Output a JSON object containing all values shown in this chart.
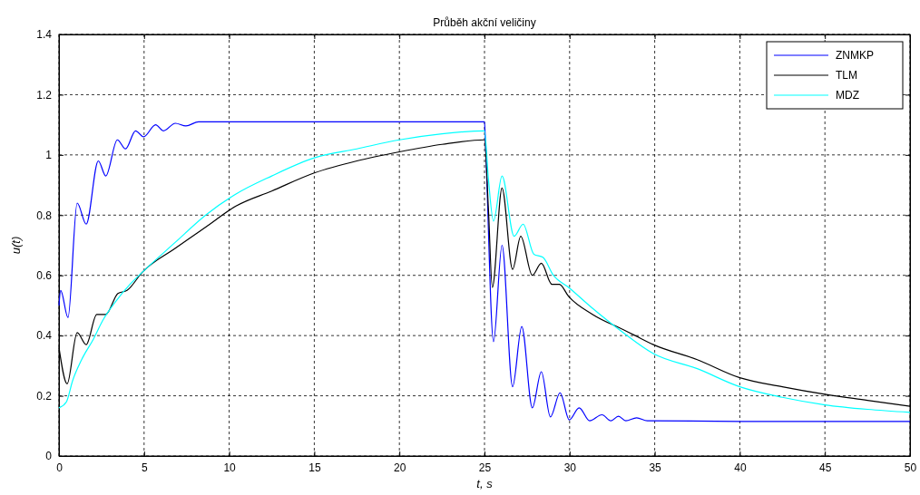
{
  "chart_data": {
    "type": "line",
    "title": "Průběh akční veličiny",
    "xlabel": "t, s",
    "ylabel": "u(t)",
    "xlim": [
      0,
      50
    ],
    "ylim": [
      0,
      1.4
    ],
    "xticks": [
      0,
      5,
      10,
      15,
      20,
      25,
      30,
      35,
      40,
      45,
      50
    ],
    "yticks": [
      0,
      0.2,
      0.4,
      0.6,
      0.8,
      1,
      1.2,
      1.4
    ],
    "grid": true,
    "legend": "top right",
    "line_style": "solid",
    "marker": "none",
    "series": [
      {
        "name": "ZNMKP",
        "color": "#0000ff",
        "x": [
          0,
          0.1,
          0.53,
          1.07,
          1.6,
          2.31,
          2.75,
          3.43,
          3.91,
          4.5,
          4.97,
          5.68,
          6.13,
          6.84,
          7.46,
          8.2,
          10,
          15,
          20,
          25,
          25.05,
          25.53,
          26.03,
          26.65,
          27.19,
          27.81,
          28.34,
          28.87,
          29.44,
          29.98,
          30.56,
          31.18,
          31.9,
          32.43,
          32.87,
          33.3,
          33.94,
          34.56,
          40,
          45,
          50
        ],
        "values": [
          0.5,
          0.55,
          0.46,
          0.84,
          0.77,
          0.98,
          0.93,
          1.05,
          1.02,
          1.08,
          1.06,
          1.1,
          1.08,
          1.105,
          1.096,
          1.11,
          1.11,
          1.11,
          1.11,
          1.11,
          1.05,
          0.38,
          0.7,
          0.23,
          0.43,
          0.16,
          0.28,
          0.13,
          0.21,
          0.12,
          0.16,
          0.117,
          0.137,
          0.117,
          0.132,
          0.117,
          0.127,
          0.117,
          0.115,
          0.115,
          0.115
        ]
      },
      {
        "name": "TLM",
        "color": "#000000",
        "x": [
          0,
          0.48,
          1.07,
          1.6,
          2.22,
          2.75,
          3.46,
          4,
          4.89,
          6.84,
          8.62,
          10.4,
          12.5,
          15,
          17.5,
          20,
          22.5,
          25,
          25.23,
          25.46,
          26.03,
          26.65,
          27.13,
          27.81,
          28.34,
          28.96,
          29.4,
          29.94,
          31.36,
          33.14,
          33.85,
          34.92,
          37.5,
          40,
          42.5,
          45,
          47.5,
          50
        ],
        "values": [
          0.36,
          0.24,
          0.41,
          0.37,
          0.47,
          0.47,
          0.54,
          0.55,
          0.61,
          0.69,
          0.76,
          0.83,
          0.88,
          0.94,
          0.98,
          1.01,
          1.035,
          1.05,
          0.82,
          0.56,
          0.89,
          0.62,
          0.73,
          0.6,
          0.64,
          0.57,
          0.57,
          0.53,
          0.47,
          0.42,
          0.4,
          0.37,
          0.32,
          0.26,
          0.23,
          0.205,
          0.185,
          0.165
        ]
      },
      {
        "name": "MDZ",
        "color": "#00ffff",
        "x": [
          0,
          0.44,
          0.8,
          1.33,
          2.04,
          2.57,
          3.29,
          4.17,
          4.89,
          6.84,
          8.62,
          10.4,
          12.5,
          15,
          17.5,
          20,
          22.5,
          25,
          25.23,
          25.53,
          26.03,
          26.74,
          27.27,
          27.9,
          28.43,
          29.05,
          29.94,
          31.36,
          33.14,
          34.92,
          37.5,
          40,
          42.5,
          45,
          47.5,
          50
        ],
        "values": [
          0.16,
          0.18,
          0.25,
          0.32,
          0.39,
          0.45,
          0.51,
          0.57,
          0.61,
          0.71,
          0.8,
          0.87,
          0.93,
          0.99,
          1.02,
          1.05,
          1.07,
          1.08,
          0.92,
          0.78,
          0.93,
          0.73,
          0.77,
          0.67,
          0.66,
          0.6,
          0.56,
          0.49,
          0.41,
          0.34,
          0.29,
          0.23,
          0.195,
          0.17,
          0.155,
          0.145
        ]
      }
    ]
  }
}
